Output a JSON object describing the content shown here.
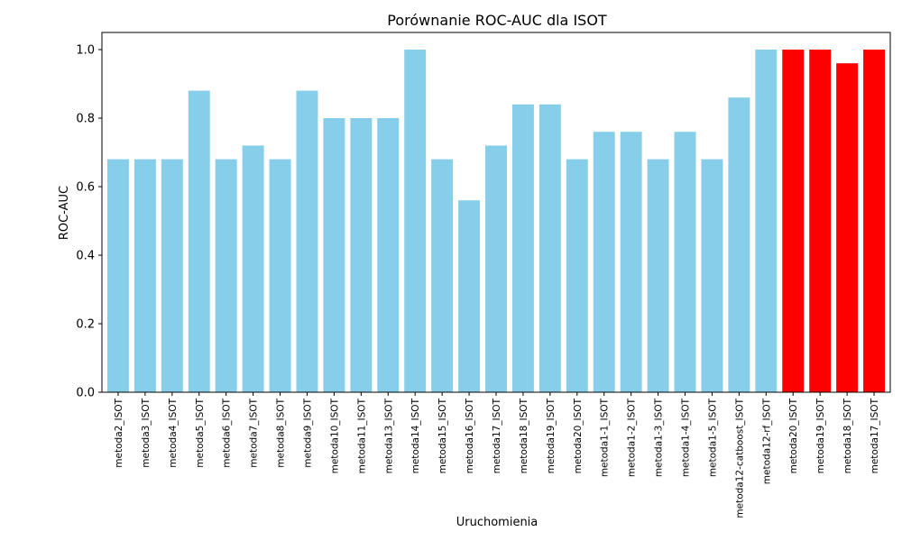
{
  "chart_data": {
    "type": "bar",
    "title": "Porównanie ROC-AUC dla ISOT",
    "xlabel": "Uruchomienia",
    "ylabel": "ROC-AUC",
    "ylim": [
      0,
      1.05
    ],
    "yticks": [
      "0.0",
      "0.2",
      "0.4",
      "0.6",
      "0.8",
      "1.0"
    ],
    "grid": false,
    "colors": {
      "default": "#87CEEB",
      "highlight": "#FF0000"
    },
    "categories": [
      "metoda2_ISOT",
      "metoda3_ISOT",
      "metoda4_ISOT",
      "metoda5_ISOT",
      "metoda6_ISOT",
      "metoda7_ISOT",
      "metoda8_ISOT",
      "metoda9_ISOT",
      "metoda10_ISOT",
      "metoda11_ISOT",
      "metoda13_ISOT",
      "metoda14_ISOT",
      "metoda15_ISOT",
      "metoda16_ISOT",
      "metoda17_ISOT",
      "metoda18_ISOT",
      "metoda19_ISOT",
      "metoda20_ISOT",
      "metoda1-1_ISOT",
      "metoda1-2_ISOT",
      "metoda1-3_ISOT",
      "metoda1-4_ISOT",
      "metoda1-5_ISOT",
      "metoda12-catboost_ISOT",
      "metoda12-rf_ISOT",
      "metoda20_ISOT",
      "metoda19_ISOT",
      "metoda18_ISOT",
      "metoda17_ISOT"
    ],
    "values": [
      0.68,
      0.68,
      0.68,
      0.88,
      0.68,
      0.72,
      0.68,
      0.88,
      0.8,
      0.8,
      0.8,
      1.0,
      0.68,
      0.56,
      0.72,
      0.84,
      0.84,
      0.68,
      0.76,
      0.76,
      0.68,
      0.76,
      0.68,
      0.86,
      1.0,
      1.0,
      1.0,
      0.96,
      1.0
    ],
    "bar_colors": [
      "#87CEEB",
      "#87CEEB",
      "#87CEEB",
      "#87CEEB",
      "#87CEEB",
      "#87CEEB",
      "#87CEEB",
      "#87CEEB",
      "#87CEEB",
      "#87CEEB",
      "#87CEEB",
      "#87CEEB",
      "#87CEEB",
      "#87CEEB",
      "#87CEEB",
      "#87CEEB",
      "#87CEEB",
      "#87CEEB",
      "#87CEEB",
      "#87CEEB",
      "#87CEEB",
      "#87CEEB",
      "#87CEEB",
      "#87CEEB",
      "#87CEEB",
      "#FF0000",
      "#FF0000",
      "#FF0000",
      "#FF0000"
    ]
  }
}
